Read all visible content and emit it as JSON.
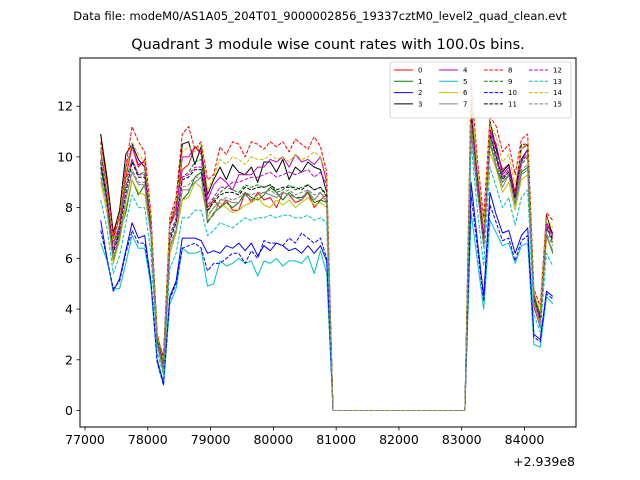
{
  "suptitle": "Data file: modeM0/AS1A05_204T01_9000002856_19337cztM0_level2_quad_clean.evt",
  "chart_data": {
    "type": "line",
    "title": "Quadrant 3 module wise count rates with 100.0s bins.",
    "xlabel": "",
    "ylabel": "",
    "x_offset_label": "+2.939e8",
    "xlim": [
      76920,
      84820
    ],
    "ylim": [
      -0.65,
      13.9
    ],
    "xticks": [
      77000,
      78000,
      79000,
      80000,
      81000,
      82000,
      83000,
      84000
    ],
    "yticks": [
      0,
      2,
      4,
      6,
      8,
      10,
      12
    ],
    "grid": false,
    "legend": {
      "placement": "top-right",
      "columns": 4
    },
    "x": [
      77250,
      77350,
      77450,
      77550,
      77650,
      77750,
      77850,
      77950,
      78050,
      78150,
      78250,
      78350,
      78450,
      78550,
      78650,
      78750,
      78850,
      78950,
      79050,
      79150,
      79250,
      79350,
      79450,
      79550,
      79650,
      79750,
      79850,
      79950,
      80050,
      80150,
      80250,
      80350,
      80450,
      80550,
      80650,
      80750,
      80850,
      80950,
      83050,
      83150,
      83250,
      83350,
      83450,
      83550,
      83650,
      83750,
      83850,
      83950,
      84050,
      84150,
      84250,
      84350,
      84450
    ],
    "series": [
      {
        "name": "0",
        "color": "#ff0000",
        "dash": false,
        "values": [
          10.9,
          9.0,
          6.8,
          7.6,
          9.2,
          10.4,
          9.6,
          9.9,
          7.5,
          3.0,
          1.9,
          7.3,
          8.0,
          9.5,
          9.7,
          10.4,
          10.2,
          8.0,
          8.3,
          8.0,
          8.3,
          7.9,
          7.9,
          8.6,
          8.2,
          8.6,
          8.3,
          8.4,
          8.0,
          8.6,
          8.5,
          8.2,
          8.3,
          8.6,
          8.0,
          8.3,
          8.5,
          0.0,
          0.0,
          11.5,
          9.3,
          7.1,
          11.1,
          10.3,
          9.5,
          9.7,
          8.6,
          10.3,
          10.5,
          4.5,
          3.8,
          7.4,
          7.0
        ]
      },
      {
        "name": "1",
        "color": "#008000",
        "dash": false,
        "values": [
          9.6,
          8.3,
          5.9,
          7.0,
          7.8,
          9.1,
          8.5,
          8.9,
          7.2,
          2.6,
          1.5,
          6.2,
          7.0,
          8.3,
          8.6,
          9.2,
          9.4,
          7.4,
          7.8,
          8.0,
          8.2,
          8.0,
          8.2,
          8.6,
          8.4,
          8.3,
          8.5,
          8.8,
          8.6,
          8.3,
          8.6,
          8.4,
          8.4,
          8.6,
          8.2,
          8.3,
          8.2,
          0.0,
          0.0,
          11.0,
          8.6,
          6.8,
          10.6,
          9.6,
          9.0,
          9.3,
          8.2,
          9.4,
          9.6,
          4.5,
          3.6,
          6.9,
          6.2
        ]
      },
      {
        "name": "2",
        "color": "#0000ff",
        "dash": false,
        "values": [
          7.5,
          6.0,
          4.7,
          5.2,
          6.3,
          7.4,
          6.8,
          6.9,
          5.1,
          2.0,
          1.1,
          4.5,
          5.1,
          6.8,
          6.8,
          6.8,
          6.7,
          6.2,
          6.3,
          6.2,
          6.5,
          6.4,
          6.6,
          6.3,
          6.6,
          6.1,
          6.5,
          6.3,
          6.6,
          6.5,
          6.3,
          6.4,
          6.2,
          6.5,
          6.2,
          6.5,
          5.9,
          0.0,
          0.0,
          9.0,
          6.7,
          4.5,
          8.6,
          7.7,
          7.0,
          7.1,
          6.2,
          6.9,
          7.2,
          3.0,
          2.8,
          4.7,
          4.5
        ]
      },
      {
        "name": "3",
        "color": "#000000",
        "dash": false,
        "values": [
          10.9,
          9.2,
          7.0,
          7.9,
          10.1,
          10.5,
          9.9,
          9.6,
          7.6,
          2.9,
          2.1,
          7.4,
          8.2,
          10.5,
          10.6,
          9.7,
          10.4,
          8.5,
          9.1,
          9.6,
          9.1,
          9.7,
          9.4,
          9.3,
          9.6,
          9.0,
          9.8,
          9.8,
          9.4,
          9.9,
          9.1,
          9.6,
          9.4,
          9.8,
          9.6,
          9.5,
          8.6,
          0.0,
          0.0,
          12.1,
          9.2,
          6.6,
          11.4,
          10.3,
          9.4,
          9.7,
          8.4,
          9.9,
          10.3,
          4.1,
          3.6,
          7.7,
          6.9
        ]
      },
      {
        "name": "4",
        "color": "#bf00bf",
        "dash": false,
        "values": [
          10.3,
          8.8,
          6.6,
          7.3,
          9.6,
          10.4,
          9.7,
          9.8,
          7.5,
          2.7,
          2.0,
          7.3,
          7.8,
          10.0,
          10.0,
          10.4,
          10.1,
          8.3,
          8.9,
          9.2,
          9.0,
          8.7,
          9.3,
          9.3,
          9.3,
          9.6,
          9.6,
          9.9,
          9.8,
          10.0,
          9.6,
          10.1,
          9.8,
          9.9,
          9.7,
          10.0,
          9.0,
          0.0,
          0.0,
          11.6,
          9.1,
          6.7,
          11.0,
          10.5,
          9.3,
          9.6,
          8.4,
          9.8,
          10.3,
          4.1,
          3.3,
          7.4,
          6.9
        ]
      },
      {
        "name": "5",
        "color": "#00bfbf",
        "dash": false,
        "values": [
          6.6,
          5.9,
          4.8,
          4.8,
          5.8,
          6.9,
          6.4,
          6.4,
          4.9,
          1.9,
          1.0,
          4.2,
          4.8,
          6.4,
          6.2,
          6.2,
          6.3,
          4.9,
          5.0,
          5.9,
          5.7,
          5.8,
          6.0,
          5.8,
          5.9,
          5.3,
          5.9,
          5.8,
          6.0,
          5.7,
          5.9,
          5.9,
          5.8,
          6.1,
          5.4,
          6.3,
          5.4,
          0.0,
          0.0,
          7.8,
          5.9,
          4.0,
          7.5,
          7.0,
          6.5,
          6.6,
          5.8,
          6.5,
          6.6,
          2.6,
          2.5,
          4.5,
          4.2
        ]
      },
      {
        "name": "6",
        "color": "#bfbf00",
        "dash": false,
        "values": [
          9.0,
          7.8,
          5.8,
          6.7,
          8.0,
          9.1,
          8.6,
          8.5,
          6.9,
          2.6,
          1.5,
          6.2,
          7.0,
          8.3,
          8.4,
          9.0,
          8.8,
          7.6,
          8.0,
          8.2,
          8.0,
          7.8,
          7.9,
          8.1,
          8.2,
          8.4,
          8.1,
          8.0,
          8.3,
          8.1,
          8.3,
          8.0,
          8.2,
          8.4,
          8.1,
          8.2,
          8.0,
          0.0,
          0.0,
          12.7,
          8.8,
          6.4,
          10.2,
          9.5,
          8.6,
          9.0,
          7.9,
          9.1,
          9.3,
          4.2,
          3.4,
          6.8,
          6.3
        ]
      },
      {
        "name": "7",
        "color": "#808080",
        "dash": false,
        "values": [
          9.2,
          8.1,
          6.0,
          6.8,
          8.3,
          9.4,
          8.9,
          8.9,
          6.9,
          2.6,
          1.6,
          6.4,
          7.1,
          8.7,
          8.7,
          9.0,
          9.2,
          7.5,
          7.7,
          8.3,
          8.3,
          8.2,
          8.2,
          8.5,
          8.3,
          8.5,
          8.6,
          8.5,
          8.4,
          8.6,
          8.5,
          8.4,
          8.3,
          8.7,
          8.3,
          8.6,
          8.2,
          0.0,
          0.0,
          11.0,
          8.7,
          6.5,
          10.5,
          9.6,
          8.8,
          9.3,
          8.1,
          9.3,
          9.5,
          4.3,
          3.5,
          6.9,
          6.3
        ]
      },
      {
        "name": "8",
        "color": "#ff0000",
        "dash": true,
        "values": [
          10.6,
          8.9,
          6.9,
          7.7,
          9.6,
          11.2,
          10.6,
          10.2,
          7.8,
          3.0,
          2.0,
          7.6,
          8.4,
          10.9,
          11.2,
          10.3,
          10.6,
          9.1,
          9.3,
          10.4,
          10.1,
          10.6,
          10.5,
          10.0,
          10.6,
          10.5,
          10.3,
          10.6,
          10.4,
          10.6,
          10.2,
          10.7,
          10.5,
          10.3,
          10.8,
          10.4,
          9.4,
          0.0,
          0.0,
          12.9,
          9.9,
          7.6,
          11.6,
          11.2,
          10.2,
          10.5,
          9.3,
          10.7,
          10.9,
          4.8,
          4.1,
          7.8,
          7.5
        ]
      },
      {
        "name": "9",
        "color": "#008000",
        "dash": true,
        "values": [
          10.2,
          8.5,
          6.4,
          7.3,
          9.1,
          9.9,
          9.3,
          9.4,
          7.5,
          2.8,
          1.9,
          6.9,
          7.6,
          9.2,
          9.4,
          9.8,
          9.9,
          7.8,
          8.3,
          8.6,
          8.8,
          8.7,
          8.6,
          8.9,
          8.8,
          8.9,
          8.8,
          8.9,
          8.6,
          8.7,
          8.9,
          8.7,
          8.8,
          8.9,
          8.7,
          8.8,
          8.4,
          0.0,
          0.0,
          11.4,
          9.0,
          6.8,
          10.8,
          9.9,
          9.2,
          9.4,
          8.4,
          9.7,
          10.0,
          4.6,
          3.7,
          7.2,
          6.6
        ]
      },
      {
        "name": "10",
        "color": "#0000ff",
        "dash": true,
        "values": [
          7.1,
          6.0,
          4.8,
          5.1,
          6.2,
          7.1,
          6.6,
          6.6,
          5.1,
          1.9,
          1.0,
          4.4,
          5.0,
          6.4,
          6.5,
          6.6,
          6.4,
          5.5,
          5.8,
          5.8,
          6.0,
          6.2,
          6.2,
          5.8,
          6.3,
          6.0,
          6.7,
          6.6,
          6.6,
          6.5,
          6.8,
          6.6,
          7.0,
          6.8,
          6.6,
          6.8,
          6.0,
          0.0,
          0.0,
          8.5,
          6.4,
          4.3,
          8.1,
          7.4,
          6.7,
          6.8,
          5.9,
          6.7,
          6.9,
          2.9,
          2.7,
          4.6,
          4.4
        ]
      },
      {
        "name": "11",
        "color": "#000000",
        "dash": true,
        "values": [
          9.8,
          8.3,
          6.2,
          7.1,
          8.6,
          9.8,
          9.2,
          9.2,
          7.2,
          2.8,
          1.7,
          6.7,
          7.4,
          9.1,
          9.2,
          9.5,
          9.5,
          7.9,
          8.2,
          8.5,
          8.6,
          8.6,
          8.5,
          8.8,
          8.7,
          8.8,
          8.8,
          8.9,
          8.7,
          8.8,
          8.8,
          8.8,
          8.7,
          8.9,
          8.7,
          8.8,
          8.5,
          0.0,
          0.0,
          11.8,
          9.0,
          6.6,
          10.9,
          10.0,
          9.1,
          9.4,
          8.4,
          10.5,
          10.5,
          4.4,
          3.6,
          7.3,
          6.7
        ]
      },
      {
        "name": "12",
        "color": "#bf00bf",
        "dash": true,
        "values": [
          9.9,
          8.4,
          6.3,
          7.2,
          8.8,
          9.9,
          9.3,
          9.3,
          7.2,
          2.7,
          1.8,
          6.8,
          7.5,
          9.2,
          9.3,
          9.6,
          9.6,
          8.1,
          8.4,
          8.8,
          8.8,
          9.0,
          9.0,
          9.1,
          9.2,
          9.2,
          9.3,
          9.4,
          9.2,
          9.3,
          9.4,
          9.3,
          9.4,
          9.5,
          9.2,
          9.4,
          8.9,
          0.0,
          0.0,
          11.9,
          9.1,
          6.7,
          11.0,
          10.1,
          9.2,
          9.5,
          8.5,
          9.8,
          10.1,
          4.4,
          3.6,
          7.3,
          6.8
        ]
      },
      {
        "name": "13",
        "color": "#00bfbf",
        "dash": true,
        "values": [
          8.3,
          7.2,
          5.4,
          6.1,
          7.4,
          8.5,
          8.0,
          8.0,
          6.2,
          2.3,
          1.4,
          5.6,
          6.2,
          7.6,
          7.6,
          7.9,
          7.9,
          6.9,
          7.1,
          7.4,
          7.3,
          7.2,
          7.4,
          7.6,
          7.5,
          7.6,
          7.6,
          7.7,
          7.6,
          7.7,
          7.7,
          7.6,
          7.6,
          7.7,
          7.5,
          7.6,
          7.4,
          0.0,
          0.0,
          10.5,
          7.9,
          5.7,
          9.6,
          8.8,
          8.0,
          8.4,
          7.3,
          8.4,
          8.7,
          3.8,
          3.1,
          6.2,
          5.7
        ]
      },
      {
        "name": "14",
        "color": "#bfbf00",
        "dash": true,
        "values": [
          10.4,
          8.8,
          6.6,
          7.6,
          9.4,
          10.6,
          10.1,
          9.8,
          7.6,
          2.9,
          2.0,
          7.4,
          8.2,
          10.2,
          10.4,
          10.2,
          10.5,
          8.7,
          9.2,
          9.9,
          9.7,
          10.0,
          9.9,
          9.7,
          10.0,
          9.9,
          9.9,
          10.1,
          9.9,
          10.0,
          9.8,
          10.1,
          9.9,
          10.0,
          10.2,
          10.0,
          9.2,
          0.0,
          0.0,
          12.6,
          9.6,
          7.2,
          11.3,
          10.8,
          9.8,
          10.1,
          8.9,
          10.3,
          10.6,
          4.7,
          3.9,
          7.6,
          7.2
        ]
      },
      {
        "name": "15",
        "color": "#808080",
        "dash": true,
        "values": [
          9.4,
          8.0,
          6.0,
          6.9,
          8.4,
          9.5,
          9.0,
          9.0,
          7.0,
          2.7,
          1.7,
          6.5,
          7.2,
          8.8,
          8.9,
          9.2,
          9.2,
          7.7,
          8.0,
          8.3,
          8.4,
          8.3,
          8.4,
          8.6,
          8.5,
          8.6,
          8.6,
          8.7,
          8.5,
          8.6,
          8.7,
          8.5,
          8.6,
          8.7,
          8.5,
          8.6,
          8.3,
          0.0,
          0.0,
          11.3,
          8.8,
          6.5,
          10.7,
          9.8,
          9.0,
          9.3,
          8.2,
          9.5,
          9.7,
          4.3,
          3.5,
          7.0,
          6.5
        ]
      }
    ]
  }
}
